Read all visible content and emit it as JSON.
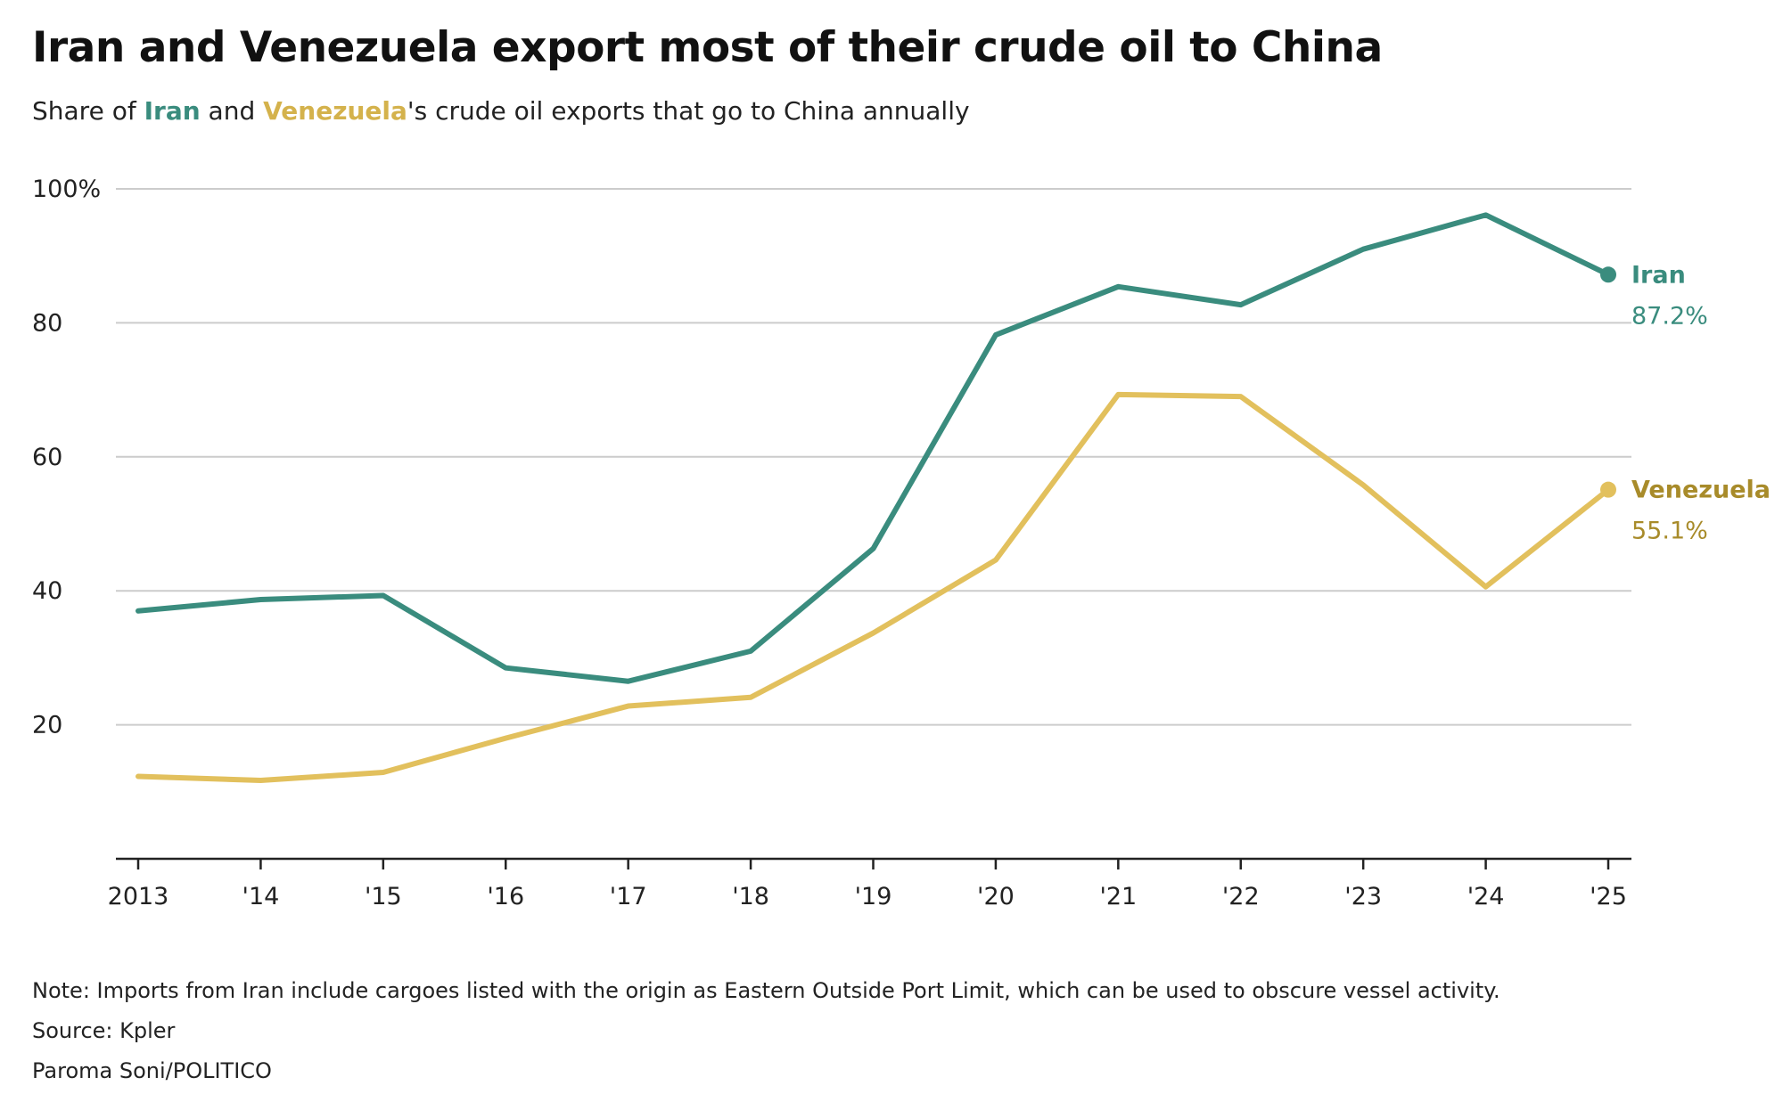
{
  "title": "Iran and Venezuela export most of their crude oil to China",
  "subtitle": {
    "prefix": "Share of ",
    "iran": "Iran",
    "middle": " and ",
    "venezuela": "Venezuela",
    "suffix": "'s crude oil exports that go to China annually"
  },
  "colors": {
    "iran": "#3a8c7e",
    "venezuela": "#e2c05d",
    "venezuela_label": "#a88b2a",
    "grid": "#cccccc",
    "axis": "#222222"
  },
  "chart_data": {
    "type": "line",
    "title": "Iran and Venezuela export most of their crude oil to China",
    "xlabel": "",
    "ylabel": "",
    "x": [
      "2013",
      "'14",
      "'15",
      "'16",
      "'17",
      "'18",
      "'19",
      "'20",
      "'21",
      "'22",
      "'23",
      "'24",
      "'25"
    ],
    "ylim": [
      0,
      100
    ],
    "yticks": [
      20,
      40,
      60,
      80,
      100
    ],
    "ytick_labels": [
      "20",
      "40",
      "60",
      "80",
      "100%"
    ],
    "grid": true,
    "series": [
      {
        "name": "Iran",
        "key": "iran",
        "values": [
          37.0,
          38.7,
          39.3,
          28.5,
          26.5,
          31.0,
          46.3,
          78.2,
          85.4,
          82.7,
          91.0,
          96.1,
          87.2
        ],
        "end_label": "Iran",
        "end_value_label": "87.2%"
      },
      {
        "name": "Venezuela",
        "key": "venezuela",
        "values": [
          12.3,
          11.7,
          12.9,
          18.0,
          22.8,
          24.1,
          33.7,
          44.6,
          69.3,
          69.0,
          55.8,
          40.6,
          55.1
        ],
        "end_label": "Venezuela",
        "end_value_label": "55.1%"
      }
    ]
  },
  "footer": {
    "note": "Note: Imports from Iran include cargoes listed with the origin as Eastern Outside Port Limit, which can be used to obscure vessel activity.",
    "source": "Source: Kpler",
    "credit": "Paroma Soni/POLITICO"
  }
}
